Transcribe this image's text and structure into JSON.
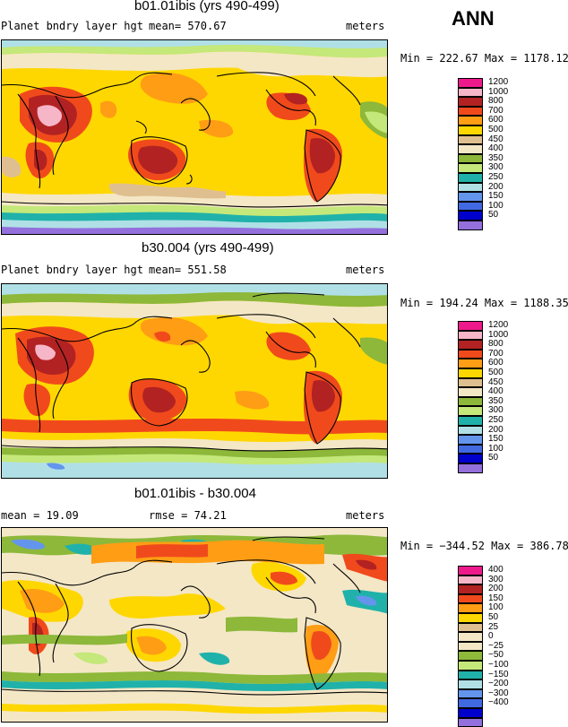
{
  "season": "ANN",
  "panels": [
    {
      "id": "p1",
      "title": "b01.01ibis (yrs 490-499)",
      "variable": "Planet bndry layer hgt",
      "mean_text": "mean= 570.67",
      "rmse_text": "",
      "units": "meters",
      "minmax_text": "Min = 222.67 Max = 1178.12",
      "legend": [
        {
          "label": "1200",
          "color": "#ee1a8c"
        },
        {
          "label": "1000",
          "color": "#f6b6c8"
        },
        {
          "label": "800",
          "color": "#b22222"
        },
        {
          "label": "700",
          "color": "#f04a1c"
        },
        {
          "label": "600",
          "color": "#ff9d14"
        },
        {
          "label": "500",
          "color": "#ffd700"
        },
        {
          "label": "450",
          "color": "#dfbf8f"
        },
        {
          "label": "400",
          "color": "#f4e7c6"
        },
        {
          "label": "350",
          "color": "#8db83a"
        },
        {
          "label": "300",
          "color": "#c4e87a"
        },
        {
          "label": "250",
          "color": "#20b2aa"
        },
        {
          "label": "200",
          "color": "#b0e0e6"
        },
        {
          "label": "150",
          "color": "#6495ed"
        },
        {
          "label": "100",
          "color": "#4169e1"
        },
        {
          "label": "50",
          "color": "#0000cd"
        },
        {
          "label": "",
          "color": "#9370db"
        }
      ]
    },
    {
      "id": "p2",
      "title": "b30.004 (yrs 490-499)",
      "variable": "Planet bndry layer hgt",
      "mean_text": "mean= 551.58",
      "rmse_text": "",
      "units": "meters",
      "minmax_text": "Min = 194.24 Max = 1188.35",
      "legend": [
        {
          "label": "1200",
          "color": "#ee1a8c"
        },
        {
          "label": "1000",
          "color": "#f6b6c8"
        },
        {
          "label": "800",
          "color": "#b22222"
        },
        {
          "label": "700",
          "color": "#f04a1c"
        },
        {
          "label": "600",
          "color": "#ff9d14"
        },
        {
          "label": "500",
          "color": "#ffd700"
        },
        {
          "label": "450",
          "color": "#dfbf8f"
        },
        {
          "label": "400",
          "color": "#f4e7c6"
        },
        {
          "label": "350",
          "color": "#8db83a"
        },
        {
          "label": "300",
          "color": "#c4e87a"
        },
        {
          "label": "250",
          "color": "#20b2aa"
        },
        {
          "label": "200",
          "color": "#b0e0e6"
        },
        {
          "label": "150",
          "color": "#6495ed"
        },
        {
          "label": "100",
          "color": "#4169e1"
        },
        {
          "label": "50",
          "color": "#0000cd"
        },
        {
          "label": "",
          "color": "#9370db"
        }
      ]
    },
    {
      "id": "p3",
      "title": "b01.01ibis - b30.004",
      "variable": "",
      "mean_text": "mean =   19.09",
      "rmse_text": "rmse =   74.21",
      "units": "meters",
      "minmax_text": "Min = −344.52 Max = 386.78",
      "legend": [
        {
          "label": "400",
          "color": "#ee1a8c"
        },
        {
          "label": "300",
          "color": "#f6b6c8"
        },
        {
          "label": "200",
          "color": "#b22222"
        },
        {
          "label": "150",
          "color": "#f04a1c"
        },
        {
          "label": "100",
          "color": "#ff9d14"
        },
        {
          "label": "50",
          "color": "#ffd700"
        },
        {
          "label": "25",
          "color": "#dfbf8f"
        },
        {
          "label": "0",
          "color": "#f4e7c6"
        },
        {
          "label": "−25",
          "color": "#f4e7c6"
        },
        {
          "label": "−50",
          "color": "#8db83a"
        },
        {
          "label": "−100",
          "color": "#c4e87a"
        },
        {
          "label": "−150",
          "color": "#20b2aa"
        },
        {
          "label": "−200",
          "color": "#b0e0e6"
        },
        {
          "label": "−300",
          "color": "#6495ed"
        },
        {
          "label": "−400",
          "color": "#4169e1"
        },
        {
          "label": "",
          "color": "#0000cd"
        },
        {
          "label": "",
          "color": "#9370db"
        }
      ]
    }
  ]
}
